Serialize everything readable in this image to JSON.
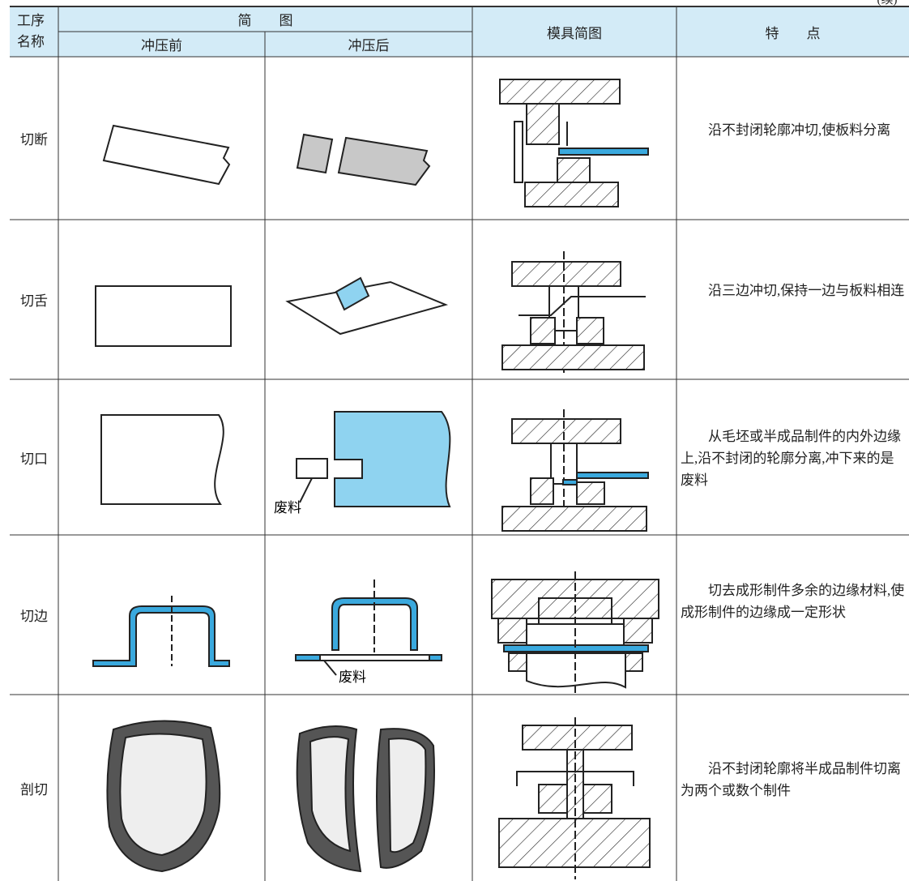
{
  "corner_note": "(续)",
  "table": {
    "header": {
      "process_name": "工序名称",
      "sketch": "简　　图",
      "before": "冲压前",
      "after": "冲压后",
      "die": "模具简图",
      "features": "特　　点"
    },
    "rows": [
      {
        "name": "切断",
        "features": "沿不封闭轮廓冲切,使板料分离"
      },
      {
        "name": "切舌",
        "features": "沿三边冲切,保持一边与板料相连"
      },
      {
        "name": "切口",
        "after_label": "废料",
        "features": "从毛坯或半成品制件的内外边缘上,沿不封闭的轮廓分离,冲下来的是废料"
      },
      {
        "name": "切边",
        "after_label": "废料",
        "features": "切去成形制件多余的边缘材料,使成形制件的边缘成一定形状"
      },
      {
        "name": "剖切",
        "features": "沿不封闭轮廓将半成品制件切离为两个或数个制件"
      }
    ]
  }
}
